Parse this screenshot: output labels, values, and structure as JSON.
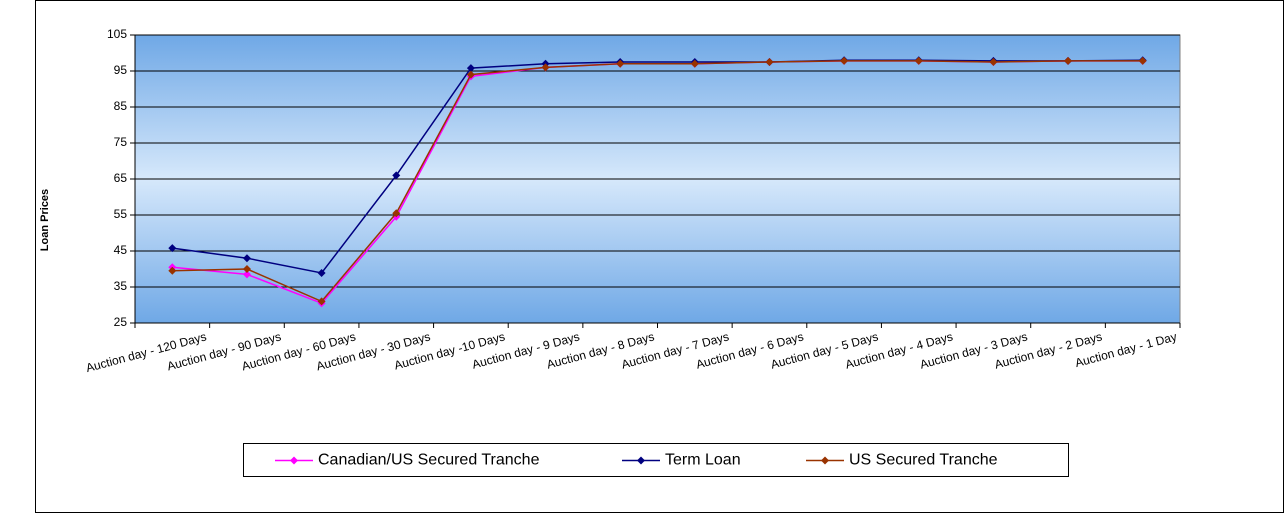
{
  "chart_data": {
    "type": "line",
    "y_label": "Loan Prices",
    "categories": [
      "Auction day - 120 Days",
      "Auction day - 90 Days",
      "Auction day - 60 Days",
      "Auction day - 30 Days",
      "Auction day -10 Days",
      "Auction day - 9 Days",
      "Auction day - 8 Days",
      "Auction day - 7 Days",
      "Auction day - 6 Days",
      "Auction day - 5 Days",
      "Auction day - 4 Days",
      "Auction day - 3 Days",
      "Auction day - 2 Days",
      "Auction day - 1 Day"
    ],
    "series": [
      {
        "name": "Canadian/US Secured Tranche",
        "color": "#ff00ff",
        "values": [
          40.5,
          38.5,
          30.5,
          54.5,
          93.5,
          96,
          97,
          97,
          97.5,
          97.8,
          97.8,
          97.5,
          97.8,
          97.8
        ]
      },
      {
        "name": "Term Loan",
        "color": "#000080",
        "values": [
          45.8,
          43,
          38.9,
          66,
          95.8,
          97,
          97.5,
          97.5,
          97.5,
          98,
          98,
          97.8,
          97.8,
          98
        ]
      },
      {
        "name": "US Secured Tranche",
        "color": "#993300",
        "values": [
          39.5,
          40,
          31,
          55.5,
          94,
          96,
          97,
          97,
          97.5,
          97.8,
          97.8,
          97.5,
          97.8,
          97.8
        ]
      }
    ],
    "ylim": [
      25,
      105
    ],
    "yticks": [
      25,
      35,
      45,
      55,
      65,
      75,
      85,
      95,
      105
    ],
    "grid": true,
    "legend": "bottom"
  }
}
